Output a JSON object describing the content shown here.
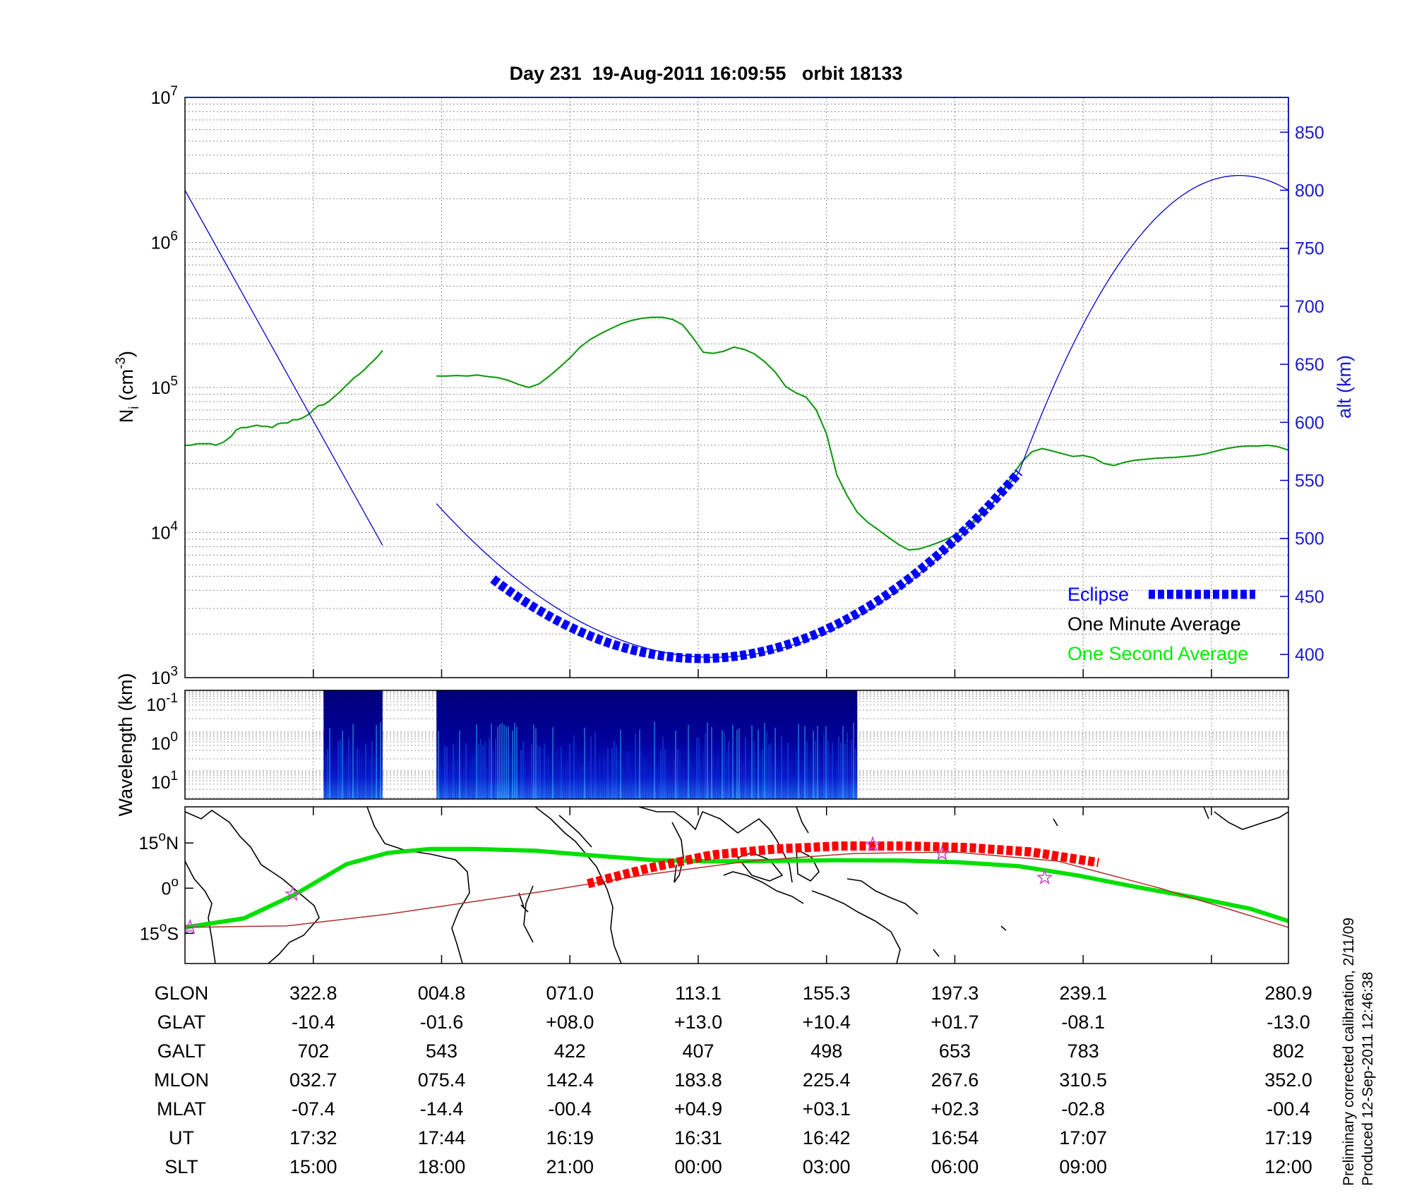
{
  "title": "Day 231  19-Aug-2011 16:09:55   orbit 18133",
  "footnote": {
    "line1": "Preliminary corrected calibration, 2/11/09",
    "line2": "Produced 12-Sep-2011 12:46:38"
  },
  "colors": {
    "density": "#1e7a1e",
    "density_second": "#00ee00",
    "altitude": "#0000cc",
    "eclipse": "#0000ff",
    "ground_track": "#00e000",
    "mag_equator": "#b03030",
    "overhead_markers": "#ff0000",
    "star_marker": "#cc44cc"
  },
  "chart_data": [
    {
      "type": "line",
      "panel": "density-altitude",
      "ylabel": "N",
      "ylabel_sub": "i",
      "ylabel_unit": " (cm",
      "ylabel_unit_sup": "-3",
      "ylabel_close": ")",
      "yscale": "log",
      "ylim": [
        1000,
        10000000
      ],
      "y_ticks": [
        {
          "base": "10",
          "exp": "3",
          "value": 1000
        },
        {
          "base": "10",
          "exp": "4",
          "value": 10000
        },
        {
          "base": "10",
          "exp": "5",
          "value": 100000
        },
        {
          "base": "10",
          "exp": "6",
          "value": 1000000
        },
        {
          "base": "10",
          "exp": "7",
          "value": 10000000
        }
      ],
      "y2label": "alt (km)",
      "y2lim": [
        380,
        880
      ],
      "y2_ticks": [
        "400",
        "450",
        "500",
        "550",
        "600",
        "650",
        "700",
        "750",
        "800",
        "850"
      ],
      "grid": true,
      "legend_position": "bottom-right",
      "legend": [
        {
          "label": "Eclipse",
          "color": "#0000ff"
        },
        {
          "label": "One Minute Average",
          "color": "#000000"
        },
        {
          "label": "One Second Average",
          "color": "#00ee00"
        }
      ],
      "series": [
        {
          "name": "density",
          "axis": "left",
          "segments": [
            {
              "x": [
                0,
                0.2,
                0.5,
                0.8,
                1.0,
                1.2,
                1.5,
                1.8,
                2.0,
                2.2,
                2.4,
                2.6,
                2.8,
                3.0,
                3.2,
                3.4,
                3.6,
                3.8,
                4.0,
                4.2,
                4.4,
                4.6,
                4.8,
                5.0,
                5.2,
                5.4,
                5.6,
                5.8,
                6.0,
                6.2,
                6.4,
                6.6,
                6.8,
                7.0,
                7.2,
                7.3,
                7.5,
                7.7
              ],
              "y": [
                40000,
                40000,
                41000,
                41000,
                41000,
                40000,
                42000,
                46000,
                51000,
                53000,
                53000,
                54000,
                55000,
                54000,
                54000,
                53000,
                56000,
                57000,
                57000,
                60000,
                60000,
                62000,
                65000,
                70000,
                75000,
                76000,
                80000,
                86000,
                92000,
                100000,
                108000,
                117000,
                124000,
                133000,
                145000,
                150000,
                163000,
                180000
              ]
            },
            {
              "x": [
                9.8,
                10.2,
                10.6,
                11.0,
                11.4,
                11.8,
                12.2,
                12.6,
                13.0,
                13.4,
                13.8,
                14.2,
                14.6,
                15.0,
                15.4,
                15.8,
                16.2,
                16.6,
                17.0,
                17.4,
                17.8,
                18.2,
                18.6,
                19.0,
                19.4,
                19.8,
                20.2,
                20.6,
                21.0,
                21.4,
                21.8,
                22.2,
                22.6,
                23.0,
                23.4,
                23.8,
                24.2,
                24.6,
                25.0,
                25.4,
                25.8,
                26.2,
                26.6,
                27.0,
                27.4,
                27.8,
                28.2,
                28.6,
                29.0,
                29.4,
                29.8,
                30.2,
                30.6,
                31.0,
                31.4,
                31.8,
                32.2,
                32.6,
                33.0,
                33.4,
                33.8,
                34.2,
                34.6,
                35.0,
                35.4,
                35.8,
                36.2,
                36.6,
                37.0,
                37.4,
                37.8,
                38.2,
                38.6,
                39.0,
                39.4,
                39.8,
                40.2,
                40.6,
                41.0,
                41.4,
                41.8,
                42.2,
                42.6,
                43.0
              ],
              "y": [
                120000,
                120000,
                121000,
                120000,
                122000,
                119000,
                117000,
                112000,
                105000,
                100000,
                106000,
                120000,
                138000,
                160000,
                190000,
                215000,
                235000,
                255000,
                275000,
                290000,
                300000,
                305000,
                305000,
                295000,
                270000,
                220000,
                175000,
                172000,
                178000,
                190000,
                183000,
                170000,
                150000,
                128000,
                102000,
                92000,
                86000,
                70000,
                48000,
                25000,
                18000,
                13800,
                11800,
                10500,
                9300,
                8300,
                7600,
                7700,
                8100,
                8600,
                9200,
                10100,
                11500,
                13400,
                15300,
                18800,
                24000,
                30600,
                36000,
                38000,
                36500,
                35000,
                33500,
                34000,
                32800,
                30000,
                29000,
                30500,
                31500,
                32000,
                32500,
                32800,
                33000,
                33500,
                34000,
                35000,
                36500,
                38000,
                39000,
                39500,
                39500,
                40000,
                39000,
                37000
              ]
            }
          ]
        },
        {
          "name": "altitude",
          "axis": "right",
          "segments": [
            {
              "x": [
                0,
                7.7
              ],
              "y": [
                800,
                494
              ]
            },
            {
              "x": [
                9.8,
                21.3,
                32.5
              ],
              "y": [
                530,
                398,
                557
              ]
            },
            {
              "x": [
                32.5,
                40.2,
                43.0
              ],
              "y": [
                557,
                810,
                800
              ]
            }
          ]
        },
        {
          "name": "Eclipse",
          "axis": "right",
          "segments": [
            {
              "x": [
                12.0,
                21.3,
                32.5
              ],
              "y": [
                465,
                398,
                557
              ]
            }
          ]
        }
      ]
    },
    {
      "type": "heatmap",
      "panel": "wavelength-spectrogram",
      "ylabel": "Wavelength (km)",
      "yscale": "log",
      "y_ticks": [
        {
          "base": "10",
          "exp": "-1"
        },
        {
          "base": "10",
          "exp": "0"
        },
        {
          "base": "10",
          "exp": "1"
        }
      ],
      "data_segments": [
        {
          "x": [
            5.4,
            7.7
          ]
        },
        {
          "x": [
            9.8,
            26.2
          ]
        }
      ]
    },
    {
      "type": "line",
      "panel": "ground-track-map",
      "y_ticks": [
        {
          "value": "15",
          "suffix": "N",
          "lat": 15
        },
        {
          "value": "0",
          "suffix": "",
          "lat": 0
        },
        {
          "value": "15",
          "suffix": "S",
          "lat": -15
        }
      ],
      "ylim": [
        -25,
        27
      ],
      "series": [
        {
          "name": "ground_track",
          "x": [
            0,
            2.3,
            4.3,
            6.3,
            7.9,
            9.5,
            11.3,
            13.7,
            16.0,
            18.3,
            20.5,
            22.8,
            25.3,
            27.9,
            30.2,
            32.5,
            34.8,
            37.0,
            39.3,
            41.5,
            43.0
          ],
          "y": [
            -13.0,
            -10.0,
            -2.0,
            8.0,
            11.7,
            13.0,
            13.0,
            12.4,
            10.8,
            9.3,
            8.9,
            9.0,
            9.3,
            9.2,
            8.6,
            7.3,
            4.2,
            0.5,
            -3.0,
            -6.8,
            -10.9
          ]
        },
        {
          "name": "magnetic_equator",
          "x": [
            0,
            4.0,
            8.0,
            10.0,
            14.0,
            18.0,
            22.0,
            26.0,
            30.0,
            34.0,
            38.0,
            43.0
          ],
          "y": [
            -13.0,
            -12.5,
            -8.5,
            -6.0,
            -1.0,
            4.5,
            9.0,
            11.5,
            12.0,
            9.0,
            0.0,
            -13.0
          ]
        },
        {
          "name": "overhead_markers",
          "x": [
            15.7,
            18.0,
            20.5,
            23.0,
            25.5,
            28.0,
            30.5,
            33.0,
            35.6
          ],
          "y": [
            1.5,
            6.5,
            11.0,
            13.0,
            14.0,
            14.0,
            13.5,
            12.0,
            8.5
          ]
        }
      ],
      "markers": [
        {
          "x": 0.2,
          "y": -13.0
        },
        {
          "x": 4.2,
          "y": -2.0
        },
        {
          "x": 26.8,
          "y": 14.5
        },
        {
          "x": 29.5,
          "y": 11.5
        },
        {
          "x": 33.5,
          "y": 3.5
        }
      ]
    }
  ],
  "table": {
    "rows": [
      {
        "label": "GLON",
        "values": [
          "322.8",
          "004.8",
          "071.0",
          "113.1",
          "155.3",
          "197.3",
          "239.1",
          "280.9"
        ]
      },
      {
        "label": "GLAT",
        "values": [
          "-10.4",
          "-01.6",
          "+08.0",
          "+13.0",
          "+10.4",
          "+01.7",
          "-08.1",
          "-13.0"
        ]
      },
      {
        "label": "GALT",
        "values": [
          "702",
          "543",
          "422",
          "407",
          "498",
          "653",
          "783",
          "802"
        ]
      },
      {
        "label": "MLON",
        "values": [
          "032.7",
          "075.4",
          "142.4",
          "183.8",
          "225.4",
          "267.6",
          "310.5",
          "352.0"
        ]
      },
      {
        "label": "MLAT",
        "values": [
          "-07.4",
          "-14.4",
          "-00.4",
          "+04.9",
          "+03.1",
          "+02.3",
          "-02.8",
          "-00.4"
        ]
      },
      {
        "label": "UT",
        "values": [
          "17:32",
          "17:44",
          "16:19",
          "16:31",
          "16:42",
          "16:54",
          "17:07",
          "17:19"
        ]
      },
      {
        "label": "SLT",
        "values": [
          "15:00",
          "18:00",
          "21:00",
          "00:00",
          "03:00",
          "06:00",
          "09:00",
          "12:00"
        ]
      }
    ]
  },
  "x_grid_positions": [
    5.0,
    10.0,
    15.0,
    20.0,
    25.0,
    30.0,
    35.0,
    40.0
  ]
}
